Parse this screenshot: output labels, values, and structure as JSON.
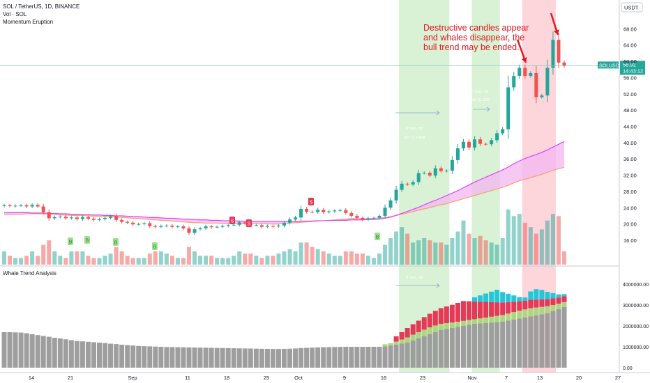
{
  "header": {
    "symbol_line": "SOL / TetherUS, 1D, BINANCE",
    "vol_line": "Vol · SOL",
    "indicator_line": "Momentum Eruption"
  },
  "lower_pane_title": "Whale Trend Analysis",
  "annotation": "Destructive candles appear and whales disappear, the bull trend may be ended.",
  "price_axis": {
    "currency": "USDT",
    "ticks": [
      "68.00",
      "64.00",
      "60.00",
      "56.00",
      "52.00",
      "48.00",
      "44.00",
      "40.00",
      "36.00",
      "32.00",
      "28.00",
      "24.00",
      "20.00",
      "16.00"
    ]
  },
  "price_label": {
    "symbol": "SOLUSDT",
    "price": "58.92",
    "countdown": "14:43:12"
  },
  "lower_axis": {
    "ticks": [
      "4000000.00",
      "3000000.00",
      "2000000.00",
      "1000000.00",
      "0.00"
    ]
  },
  "x_axis": {
    "ticks": [
      "14",
      "21",
      "Sep",
      "11",
      "18",
      "25",
      "Oct",
      "9",
      "16",
      "23",
      "Nov",
      "7",
      "13",
      "20",
      "27"
    ]
  },
  "measure_labels": {
    "green_range": [
      "8 bars, 8d",
      "Vol 72.136M"
    ],
    "right_range": [
      "8 bars, 5d",
      "Vol 51.979"
    ],
    "lower_range": "8 bars, 8d"
  },
  "markers": {
    "sell": [
      "S",
      "S",
      "S",
      "S"
    ],
    "buy": [
      "B",
      "B",
      "B",
      "B",
      "B"
    ]
  },
  "colors": {
    "up": "#26a69a",
    "down": "#ef5350",
    "ma_fast": "#f7a072",
    "ma_slow": "#e040fb",
    "cloud": "#f3b6f0",
    "green_zone": "#b9e5b3",
    "red_zone": "#f9b5bd",
    "whale_base": "#9e9e9e",
    "whale_green": "#aed581",
    "whale_red": "#e53956",
    "whale_cyan": "#26c6da",
    "annotation": "#e4161f"
  },
  "chart_data": {
    "type": "candlestick",
    "panes": [
      "price_volume",
      "whale_trend"
    ],
    "price_ylim": [
      10,
      72
    ],
    "current_price": 58.92,
    "x_start": "2023-08-09",
    "dates": [
      "Aug 9",
      "Aug 10",
      "Aug 11",
      "Aug 12",
      "Aug 13",
      "Aug 14",
      "Aug 15",
      "Aug 16",
      "Aug 17",
      "Aug 18",
      "Aug 19",
      "Aug 20",
      "Aug 21",
      "Aug 22",
      "Aug 23",
      "Aug 24",
      "Aug 25",
      "Aug 26",
      "Aug 27",
      "Aug 28",
      "Aug 29",
      "Aug 30",
      "Aug 31",
      "Sep 1",
      "Sep 2",
      "Sep 3",
      "Sep 4",
      "Sep 5",
      "Sep 6",
      "Sep 7",
      "Sep 8",
      "Sep 9",
      "Sep 10",
      "Sep 11",
      "Sep 12",
      "Sep 13",
      "Sep 14",
      "Sep 15",
      "Sep 16",
      "Sep 17",
      "Sep 18",
      "Sep 19",
      "Sep 20",
      "Sep 21",
      "Sep 22",
      "Sep 23",
      "Sep 24",
      "Sep 25",
      "Sep 26",
      "Sep 27",
      "Sep 28",
      "Sep 29",
      "Sep 30",
      "Oct 1",
      "Oct 2",
      "Oct 3",
      "Oct 4",
      "Oct 5",
      "Oct 6",
      "Oct 7",
      "Oct 8",
      "Oct 9",
      "Oct 10",
      "Oct 11",
      "Oct 12",
      "Oct 13",
      "Oct 14",
      "Oct 15",
      "Oct 16",
      "Oct 17",
      "Oct 18",
      "Oct 19",
      "Oct 20",
      "Oct 21",
      "Oct 22",
      "Oct 23",
      "Oct 24",
      "Oct 25",
      "Oct 26",
      "Oct 27",
      "Oct 28",
      "Oct 29",
      "Oct 30",
      "Oct 31",
      "Nov 1",
      "Nov 2",
      "Nov 3",
      "Nov 4",
      "Nov 5",
      "Nov 6",
      "Nov 7",
      "Nov 8",
      "Nov 9",
      "Nov 10",
      "Nov 11",
      "Nov 12",
      "Nov 13",
      "Nov 14",
      "Nov 15",
      "Nov 16",
      "Nov 17"
    ],
    "close": [
      24.6,
      24.4,
      24.5,
      24.6,
      24.3,
      24.7,
      24.3,
      22.9,
      21.4,
      21.7,
      21.8,
      21.4,
      21.6,
      21.2,
      21.7,
      21.3,
      21.0,
      21.2,
      21.5,
      21.9,
      21.0,
      20.5,
      20.3,
      19.9,
      20.0,
      20.2,
      19.5,
      19.3,
      19.5,
      19.6,
      19.3,
      19.4,
      18.9,
      17.8,
      18.7,
      18.9,
      19.4,
      19.2,
      19.3,
      19.5,
      19.7,
      19.8,
      20.4,
      20.1,
      19.7,
      19.7,
      19.3,
      19.5,
      19.4,
      19.6,
      20.3,
      21.1,
      21.6,
      23.7,
      23.0,
      22.9,
      23.5,
      22.9,
      23.1,
      23.3,
      23.4,
      22.7,
      22.0,
      21.5,
      21.1,
      21.4,
      21.5,
      22.0,
      24.0,
      25.8,
      28.4,
      29.9,
      29.7,
      30.3,
      32.5,
      32.6,
      31.9,
      33.7,
      33.0,
      33.1,
      35.7,
      38.6,
      40.2,
      38.8,
      40.8,
      39.7,
      39.6,
      40.6,
      42.3,
      43.3,
      53.6,
      56.4,
      58.4,
      56.4,
      57.1,
      51.2,
      51.6,
      58.4,
      65.3,
      59.7,
      58.9
    ],
    "volume_millions": [
      6,
      4,
      3,
      3,
      4,
      6,
      4,
      9,
      11,
      6,
      4,
      3,
      6,
      6,
      6,
      4,
      3,
      3,
      4,
      5,
      8,
      6,
      4,
      3,
      3,
      3,
      5,
      6,
      6,
      5,
      4,
      3,
      3,
      8,
      6,
      4,
      4,
      4,
      3,
      3,
      3,
      4,
      6,
      5,
      5,
      4,
      3,
      4,
      4,
      5,
      6,
      7,
      6,
      10,
      10,
      8,
      7,
      6,
      5,
      4,
      4,
      6,
      6,
      5,
      5,
      4,
      3,
      5,
      9,
      12,
      15,
      17,
      14,
      10,
      11,
      12,
      11,
      10,
      10,
      9,
      12,
      15,
      20,
      14,
      12,
      13,
      11,
      10,
      9,
      12,
      25,
      22,
      23,
      19,
      17,
      14,
      16,
      20,
      23,
      22,
      6
    ],
    "ma_fast": [
      22.3,
      22.3,
      22.4,
      22.4,
      22.5,
      22.5,
      22.5,
      22.5,
      22.4,
      22.3,
      22.2,
      22.2,
      22.1,
      22.1,
      22.1,
      22.0,
      21.9,
      21.9,
      21.8,
      21.8,
      21.7,
      21.6,
      21.5,
      21.4,
      21.3,
      21.2,
      21.1,
      21.0,
      20.9,
      20.8,
      20.7,
      20.6,
      20.5,
      20.4,
      20.3,
      20.3,
      20.2,
      20.2,
      20.2,
      20.1,
      20.1,
      20.1,
      20.1,
      20.1,
      20.1,
      20.1,
      20.1,
      20.0,
      20.0,
      20.0,
      20.1,
      20.2,
      20.3,
      20.4,
      20.5,
      20.6,
      20.7,
      20.8,
      20.9,
      21.0,
      21.1,
      21.2,
      21.3,
      21.3,
      21.3,
      21.3,
      21.4,
      21.4,
      21.6,
      21.8,
      22.1,
      22.4,
      22.7,
      23.0,
      23.4,
      23.7,
      24.0,
      24.4,
      24.7,
      25.0,
      25.4,
      25.8,
      26.2,
      26.6,
      27.0,
      27.4,
      27.8,
      28.2,
      28.6,
      29.0,
      29.5,
      30.1,
      30.6,
      31.0,
      31.4,
      31.8,
      32.2,
      32.7,
      33.2,
      33.6,
      33.9
    ],
    "ma_slow": [
      22.8,
      22.8,
      22.8,
      22.8,
      22.8,
      22.7,
      22.7,
      22.7,
      22.6,
      22.6,
      22.5,
      22.5,
      22.4,
      22.4,
      22.3,
      22.3,
      22.2,
      22.2,
      22.1,
      22.1,
      22.0,
      22.0,
      21.9,
      21.8,
      21.8,
      21.7,
      21.6,
      21.6,
      21.5,
      21.4,
      21.4,
      21.3,
      21.2,
      21.2,
      21.1,
      21.0,
      21.0,
      20.9,
      20.9,
      20.8,
      20.8,
      20.8,
      20.7,
      20.7,
      20.7,
      20.6,
      20.6,
      20.6,
      20.6,
      20.6,
      20.6,
      20.6,
      20.6,
      20.7,
      20.7,
      20.7,
      20.8,
      20.8,
      20.8,
      20.9,
      20.9,
      20.9,
      21.0,
      21.0,
      21.0,
      21.1,
      21.1,
      21.2,
      21.4,
      21.7,
      22.1,
      22.6,
      23.1,
      23.6,
      24.1,
      24.7,
      25.3,
      25.8,
      26.4,
      27.0,
      27.6,
      28.2,
      28.9,
      29.6,
      30.3,
      30.9,
      31.5,
      32.1,
      32.7,
      33.3,
      34.0,
      34.8,
      35.5,
      36.1,
      36.6,
      37.1,
      37.6,
      38.2,
      38.9,
      39.6,
      40.3
    ],
    "whale_trend": {
      "ylim": [
        0,
        4400000
      ],
      "series": [
        {
          "name": "base",
          "values": [
            1700000,
            1700000,
            1690000,
            1680000,
            1650000,
            1600000,
            1560000,
            1520000,
            1480000,
            1430000,
            1400000,
            1360000,
            1320000,
            1280000,
            1260000,
            1240000,
            1220000,
            1200000,
            1180000,
            1150000,
            1130000,
            1100000,
            1080000,
            1060000,
            1040000,
            1030000,
            1020000,
            1010000,
            1000000,
            990000,
            985000,
            980000,
            975000,
            970000,
            965000,
            960000,
            955000,
            950000,
            945000,
            940000,
            935000,
            930000,
            925000,
            920000,
            915000,
            910000,
            905000,
            900000,
            898000,
            896000,
            900000,
            910000,
            920000,
            940000,
            950000,
            960000,
            970000,
            980000,
            985000,
            990000,
            995000,
            1000000,
            1000000,
            1000000,
            1000000,
            1000000,
            1000000,
            1000000,
            1020000,
            1050000,
            1100000,
            1150000,
            1200000,
            1300000,
            1400000,
            1500000,
            1600000,
            1700000,
            1800000,
            1850000,
            1900000,
            1950000,
            2000000,
            2050000,
            2100000,
            2120000,
            2140000,
            2160000,
            2180000,
            2200000,
            2250000,
            2300000,
            2350000,
            2400000,
            2450000,
            2500000,
            2550000,
            2600000,
            2700000,
            2800000,
            2900000
          ]
        },
        {
          "name": "green",
          "values": [
            0,
            0,
            0,
            0,
            0,
            0,
            0,
            0,
            0,
            0,
            0,
            0,
            0,
            0,
            0,
            0,
            0,
            0,
            0,
            0,
            0,
            0,
            0,
            0,
            0,
            0,
            0,
            0,
            0,
            0,
            0,
            0,
            0,
            0,
            0,
            0,
            0,
            0,
            0,
            0,
            0,
            0,
            0,
            0,
            0,
            0,
            0,
            0,
            0,
            0,
            0,
            0,
            0,
            0,
            0,
            0,
            0,
            0,
            0,
            0,
            0,
            0,
            0,
            0,
            0,
            0,
            0,
            0,
            100000,
            120000,
            150000,
            200000,
            250000,
            280000,
            300000,
            320000,
            330000,
            320000,
            300000,
            280000,
            260000,
            250000,
            240000,
            230000,
            220000,
            240000,
            260000,
            280000,
            300000,
            320000,
            340000,
            360000,
            380000,
            390000,
            400000,
            380000,
            360000,
            340000,
            300000,
            260000,
            240000
          ]
        },
        {
          "name": "red",
          "values": [
            0,
            0,
            0,
            0,
            0,
            0,
            0,
            0,
            0,
            0,
            0,
            0,
            0,
            0,
            0,
            0,
            0,
            0,
            0,
            0,
            0,
            0,
            0,
            0,
            0,
            0,
            0,
            0,
            0,
            0,
            0,
            0,
            0,
            0,
            0,
            0,
            0,
            0,
            0,
            0,
            0,
            0,
            0,
            0,
            0,
            0,
            0,
            0,
            0,
            0,
            0,
            0,
            0,
            0,
            0,
            0,
            0,
            0,
            0,
            0,
            0,
            0,
            0,
            0,
            0,
            0,
            0,
            0,
            0,
            0,
            250000,
            350000,
            450000,
            500000,
            550000,
            600000,
            650000,
            700000,
            750000,
            800000,
            850000,
            900000,
            950000,
            900000,
            850000,
            800000,
            750000,
            700000,
            650000,
            600000,
            550000,
            500000,
            450000,
            420000,
            400000,
            380000,
            360000,
            340000,
            320000,
            300000,
            280000
          ]
        },
        {
          "name": "cyan",
          "values": [
            0,
            0,
            0,
            0,
            0,
            0,
            0,
            0,
            0,
            0,
            0,
            0,
            0,
            0,
            0,
            0,
            0,
            0,
            0,
            0,
            0,
            0,
            0,
            0,
            0,
            0,
            0,
            0,
            0,
            0,
            0,
            0,
            0,
            0,
            0,
            0,
            0,
            0,
            0,
            0,
            0,
            0,
            0,
            0,
            0,
            0,
            0,
            0,
            0,
            0,
            0,
            0,
            0,
            0,
            0,
            0,
            0,
            0,
            0,
            0,
            0,
            0,
            0,
            0,
            0,
            0,
            0,
            0,
            0,
            0,
            0,
            0,
            0,
            0,
            0,
            0,
            0,
            0,
            0,
            0,
            0,
            0,
            0,
            0,
            200000,
            300000,
            400000,
            500000,
            600000,
            500000,
            400000,
            300000,
            200000,
            150000,
            400000,
            500000,
            450000,
            350000,
            250000,
            150000,
            100000
          ]
        }
      ]
    },
    "shaded_ranges": [
      {
        "from": "Oct 19",
        "to": "Oct 27",
        "color": "green"
      },
      {
        "from": "Nov 1",
        "to": "Nov 5",
        "color": "green"
      },
      {
        "from": "Nov 10",
        "to": "Nov 15",
        "color": "red"
      }
    ]
  }
}
